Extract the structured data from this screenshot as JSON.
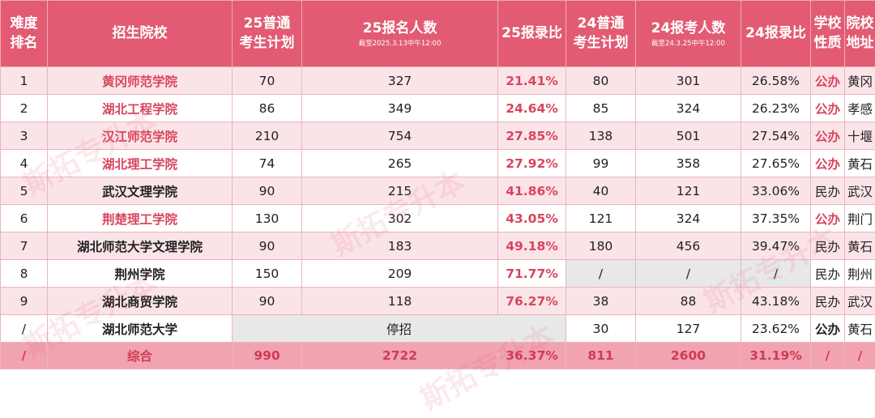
{
  "headers": [
    {
      "line1": "难度",
      "line2": "排名"
    },
    {
      "line1": "招生院校",
      "line2": ""
    },
    {
      "line1": "25普通",
      "line2": "考生计划"
    },
    {
      "line1": "25报名人数",
      "line2": "截至2025.3.13中午12:00"
    },
    {
      "line1": "25报录比",
      "line2": ""
    },
    {
      "line1": "24普通",
      "line2": "考生计划"
    },
    {
      "line1": "24报考人数",
      "line2": "截至24.3.25中午12:00"
    },
    {
      "line1": "24报录比",
      "line2": ""
    },
    {
      "line1": "学校",
      "line2": "性质"
    },
    {
      "line1": "院校",
      "line2": "地址"
    }
  ],
  "rows": [
    {
      "rank": "1",
      "school": "黄冈师范学院",
      "plan25": "70",
      "apply25": "327",
      "ratio25": "21.41%",
      "plan24": "80",
      "apply24": "301",
      "ratio24": "26.58%",
      "type": "公办",
      "location": "黄冈"
    },
    {
      "rank": "2",
      "school": "湖北工程学院",
      "plan25": "86",
      "apply25": "349",
      "ratio25": "24.64%",
      "plan24": "85",
      "apply24": "324",
      "ratio24": "26.23%",
      "type": "公办",
      "location": "孝感"
    },
    {
      "rank": "3",
      "school": "汉江师范学院",
      "plan25": "210",
      "apply25": "754",
      "ratio25": "27.85%",
      "plan24": "138",
      "apply24": "501",
      "ratio24": "27.54%",
      "type": "公办",
      "location": "十堰"
    },
    {
      "rank": "4",
      "school": "湖北理工学院",
      "plan25": "74",
      "apply25": "265",
      "ratio25": "27.92%",
      "plan24": "99",
      "apply24": "358",
      "ratio24": "27.65%",
      "type": "公办",
      "location": "黄石"
    },
    {
      "rank": "5",
      "school": "武汉文理学院",
      "plan25": "90",
      "apply25": "215",
      "ratio25": "41.86%",
      "plan24": "40",
      "apply24": "121",
      "ratio24": "33.06%",
      "type": "民办",
      "location": "武汉"
    },
    {
      "rank": "6",
      "school": "荆楚理工学院",
      "plan25": "130",
      "apply25": "302",
      "ratio25": "43.05%",
      "plan24": "121",
      "apply24": "324",
      "ratio24": "37.35%",
      "type": "公办",
      "location": "荆门"
    },
    {
      "rank": "7",
      "school": "湖北师范大学文理学院",
      "plan25": "90",
      "apply25": "183",
      "ratio25": "49.18%",
      "plan24": "180",
      "apply24": "456",
      "ratio24": "39.47%",
      "type": "民办",
      "location": "黄石"
    },
    {
      "rank": "8",
      "school": "荆州学院",
      "plan25": "150",
      "apply25": "209",
      "ratio25": "71.77%",
      "plan24": "/",
      "apply24": "/",
      "ratio24": "/",
      "type": "民办",
      "location": "荆州"
    },
    {
      "rank": "9",
      "school": "湖北商贸学院",
      "plan25": "90",
      "apply25": "118",
      "ratio25": "76.27%",
      "plan24": "38",
      "apply24": "88",
      "ratio24": "43.18%",
      "type": "民办",
      "location": "武汉"
    },
    {
      "rank": "/",
      "school": "湖北师范大学",
      "plan25": "",
      "apply25": "停招",
      "ratio25": "",
      "plan24": "30",
      "apply24": "127",
      "ratio24": "23.62%",
      "type": "公办",
      "location": "黄石"
    }
  ],
  "total": {
    "rank": "/",
    "school": "综合",
    "plan25": "990",
    "apply25": "2722",
    "ratio25": "36.37%",
    "plan24": "811",
    "apply24": "2600",
    "ratio24": "31.19%",
    "type": "/",
    "location": "/"
  },
  "watermark": "斯拓专升本",
  "colors": {
    "header_bg": "#e25b73",
    "accent_red": "#d9455f",
    "row_pink": "#fbe4e8",
    "total_bg": "#f1a3b1",
    "gray_cell": "#e8e8e8"
  }
}
